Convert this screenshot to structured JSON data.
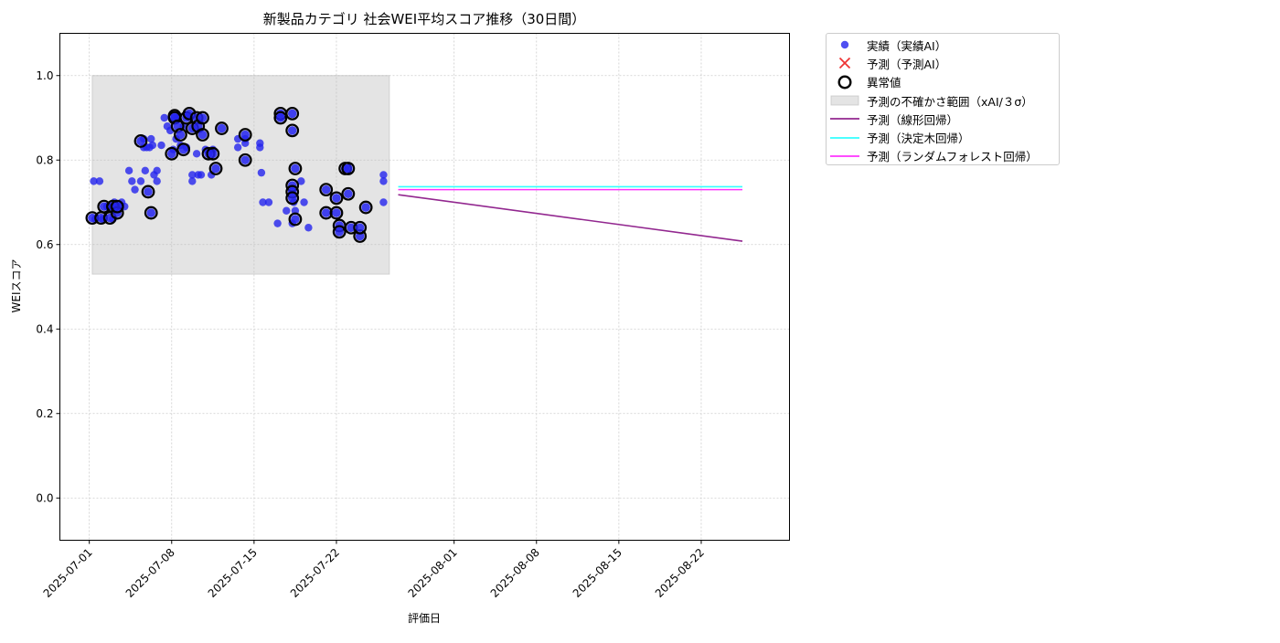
{
  "chart_data": {
    "type": "scatter",
    "title": "新製品カテゴリ 社会WEI平均スコア推移（30日間）",
    "xlabel": "評価日",
    "ylabel": "WEIスコア",
    "xlim": [
      "2025-06-28T12:00",
      "2025-08-29T12:00"
    ],
    "ylim": [
      -0.1,
      1.1
    ],
    "yticks": [
      0.0,
      0.2,
      0.4,
      0.6,
      0.8,
      1.0
    ],
    "ytick_labels": [
      "0.0",
      "0.2",
      "0.4",
      "0.6",
      "0.8",
      "1.0"
    ],
    "xticks": [
      "2025-07-01",
      "2025-07-08",
      "2025-07-15",
      "2025-07-22",
      "2025-08-01",
      "2025-08-08",
      "2025-08-15",
      "2025-08-22"
    ],
    "xtick_labels": [
      "2025-07-01",
      "2025-07-08",
      "2025-07-15",
      "2025-07-22",
      "2025-08-01",
      "2025-08-08",
      "2025-08-15",
      "2025-08-22"
    ],
    "grid": true,
    "legend_position": "outside-top-right",
    "legend": [
      {
        "label": "実績（実績AI）",
        "kind": "dot",
        "color": "#2323ee"
      },
      {
        "label": "予測（予測AI）",
        "kind": "x",
        "color": "#ee3333"
      },
      {
        "label": "異常値",
        "kind": "ring",
        "color": "#000000"
      },
      {
        "label": "予測の不確かさ範囲（xAI/３σ）",
        "kind": "band",
        "color": "#bbbbbb"
      },
      {
        "label": "予測（線形回帰）",
        "kind": "line",
        "color": "#92278f"
      },
      {
        "label": "予測（決定木回帰）",
        "kind": "line",
        "color": "#33ffff"
      },
      {
        "label": "予測（ランダムフォレスト回帰）",
        "kind": "line",
        "color": "#ff33ff"
      }
    ],
    "uncertainty_band": {
      "x": [
        "2025-07-01T06:00",
        "2025-07-26T12:00"
      ],
      "y": [
        0.53,
        1.0
      ]
    },
    "series": [
      {
        "name": "実績（実績AI）",
        "color": "#2323ee",
        "points": [
          {
            "x": "2025-07-01T09:00",
            "y": 0.75
          },
          {
            "x": "2025-07-01T12:00",
            "y": 0.66
          },
          {
            "x": "2025-07-01T21:00",
            "y": 0.75
          },
          {
            "x": "2025-07-02T03:00",
            "y": 0.66
          },
          {
            "x": "2025-07-02T12:00",
            "y": 0.69
          },
          {
            "x": "2025-07-02T18:00",
            "y": 0.69
          },
          {
            "x": "2025-07-03T00:00",
            "y": 0.66
          },
          {
            "x": "2025-07-03T03:00",
            "y": 0.7
          },
          {
            "x": "2025-07-03T12:00",
            "y": 0.69
          },
          {
            "x": "2025-07-03T18:00",
            "y": 0.7
          },
          {
            "x": "2025-07-04T00:00",
            "y": 0.69
          },
          {
            "x": "2025-07-04T09:00",
            "y": 0.775
          },
          {
            "x": "2025-07-04T15:00",
            "y": 0.75
          },
          {
            "x": "2025-07-04T21:00",
            "y": 0.73
          },
          {
            "x": "2025-07-05T09:00",
            "y": 0.75
          },
          {
            "x": "2025-07-05T15:00",
            "y": 0.83
          },
          {
            "x": "2025-07-05T15:00",
            "y": 0.85
          },
          {
            "x": "2025-07-05T18:00",
            "y": 0.775
          },
          {
            "x": "2025-07-05T21:00",
            "y": 0.83
          },
          {
            "x": "2025-07-06T03:00",
            "y": 0.83
          },
          {
            "x": "2025-07-06T06:00",
            "y": 0.85
          },
          {
            "x": "2025-07-06T09:00",
            "y": 0.835
          },
          {
            "x": "2025-07-06T12:00",
            "y": 0.765
          },
          {
            "x": "2025-07-06T18:00",
            "y": 0.775
          },
          {
            "x": "2025-07-06T18:00",
            "y": 0.75
          },
          {
            "x": "2025-07-07T03:00",
            "y": 0.835
          },
          {
            "x": "2025-07-07T09:00",
            "y": 0.9
          },
          {
            "x": "2025-07-07T15:00",
            "y": 0.88
          },
          {
            "x": "2025-07-07T21:00",
            "y": 0.87
          },
          {
            "x": "2025-07-08T03:00",
            "y": 0.825
          },
          {
            "x": "2025-07-08T09:00",
            "y": 0.85
          },
          {
            "x": "2025-07-08T12:00",
            "y": 0.9
          },
          {
            "x": "2025-07-08T18:00",
            "y": 0.835
          },
          {
            "x": "2025-07-09T00:00",
            "y": 0.88
          },
          {
            "x": "2025-07-09T06:00",
            "y": 0.83
          },
          {
            "x": "2025-07-09T09:00",
            "y": 0.905
          },
          {
            "x": "2025-07-09T18:00",
            "y": 0.75
          },
          {
            "x": "2025-07-09T18:00",
            "y": 0.765
          },
          {
            "x": "2025-07-10T03:00",
            "y": 0.815
          },
          {
            "x": "2025-07-10T06:00",
            "y": 0.765
          },
          {
            "x": "2025-07-10T12:00",
            "y": 0.765
          },
          {
            "x": "2025-07-10T21:00",
            "y": 0.825
          },
          {
            "x": "2025-07-11T09:00",
            "y": 0.765
          },
          {
            "x": "2025-07-11T12:00",
            "y": 0.825
          },
          {
            "x": "2025-07-13T15:00",
            "y": 0.85
          },
          {
            "x": "2025-07-13T15:00",
            "y": 0.83
          },
          {
            "x": "2025-07-14T06:00",
            "y": 0.85
          },
          {
            "x": "2025-07-14T06:00",
            "y": 0.84
          },
          {
            "x": "2025-07-15T12:00",
            "y": 0.84
          },
          {
            "x": "2025-07-15T12:00",
            "y": 0.83
          },
          {
            "x": "2025-07-15T15:00",
            "y": 0.77
          },
          {
            "x": "2025-07-15T18:00",
            "y": 0.7
          },
          {
            "x": "2025-07-16T06:00",
            "y": 0.7
          },
          {
            "x": "2025-07-17T00:00",
            "y": 0.65
          },
          {
            "x": "2025-07-17T18:00",
            "y": 0.68
          },
          {
            "x": "2025-07-18T06:00",
            "y": 0.65
          },
          {
            "x": "2025-07-18T09:00",
            "y": 0.7
          },
          {
            "x": "2025-07-18T12:00",
            "y": 0.68
          },
          {
            "x": "2025-07-19T00:00",
            "y": 0.75
          },
          {
            "x": "2025-07-19T06:00",
            "y": 0.7
          },
          {
            "x": "2025-07-19T15:00",
            "y": 0.64
          },
          {
            "x": "2025-07-26T00:00",
            "y": 0.765
          },
          {
            "x": "2025-07-26T00:00",
            "y": 0.75
          },
          {
            "x": "2025-07-26T00:00",
            "y": 0.7
          }
        ]
      },
      {
        "name": "異常値",
        "color": "#000000",
        "points": [
          {
            "x": "2025-07-01T06:00",
            "y": 0.663
          },
          {
            "x": "2025-07-02T00:00",
            "y": 0.663
          },
          {
            "x": "2025-07-02T06:00",
            "y": 0.69
          },
          {
            "x": "2025-07-02T18:00",
            "y": 0.663
          },
          {
            "x": "2025-07-03T00:00",
            "y": 0.69
          },
          {
            "x": "2025-07-03T09:00",
            "y": 0.675
          },
          {
            "x": "2025-07-03T09:00",
            "y": 0.69
          },
          {
            "x": "2025-07-05T09:00",
            "y": 0.845
          },
          {
            "x": "2025-07-06T00:00",
            "y": 0.725
          },
          {
            "x": "2025-07-06T06:00",
            "y": 0.675
          },
          {
            "x": "2025-07-08T00:00",
            "y": 0.815
          },
          {
            "x": "2025-07-08T06:00",
            "y": 0.905
          },
          {
            "x": "2025-07-08T06:00",
            "y": 0.9
          },
          {
            "x": "2025-07-08T12:00",
            "y": 0.88
          },
          {
            "x": "2025-07-08T18:00",
            "y": 0.86
          },
          {
            "x": "2025-07-09T00:00",
            "y": 0.825
          },
          {
            "x": "2025-07-09T06:00",
            "y": 0.9
          },
          {
            "x": "2025-07-09T12:00",
            "y": 0.91
          },
          {
            "x": "2025-07-09T18:00",
            "y": 0.875
          },
          {
            "x": "2025-07-10T03:00",
            "y": 0.9
          },
          {
            "x": "2025-07-10T06:00",
            "y": 0.88
          },
          {
            "x": "2025-07-10T15:00",
            "y": 0.9
          },
          {
            "x": "2025-07-10T15:00",
            "y": 0.86
          },
          {
            "x": "2025-07-11T03:00",
            "y": 0.815
          },
          {
            "x": "2025-07-11T12:00",
            "y": 0.815
          },
          {
            "x": "2025-07-11T18:00",
            "y": 0.78
          },
          {
            "x": "2025-07-12T06:00",
            "y": 0.875
          },
          {
            "x": "2025-07-14T06:00",
            "y": 0.86
          },
          {
            "x": "2025-07-14T06:00",
            "y": 0.8
          },
          {
            "x": "2025-07-17T06:00",
            "y": 0.91
          },
          {
            "x": "2025-07-17T06:00",
            "y": 0.9
          },
          {
            "x": "2025-07-18T06:00",
            "y": 0.91
          },
          {
            "x": "2025-07-18T06:00",
            "y": 0.87
          },
          {
            "x": "2025-07-18T06:00",
            "y": 0.74
          },
          {
            "x": "2025-07-18T06:00",
            "y": 0.725
          },
          {
            "x": "2025-07-18T06:00",
            "y": 0.71
          },
          {
            "x": "2025-07-18T12:00",
            "y": 0.78
          },
          {
            "x": "2025-07-18T12:00",
            "y": 0.66
          },
          {
            "x": "2025-07-21T03:00",
            "y": 0.73
          },
          {
            "x": "2025-07-21T03:00",
            "y": 0.675
          },
          {
            "x": "2025-07-22T00:00",
            "y": 0.71
          },
          {
            "x": "2025-07-22T00:00",
            "y": 0.675
          },
          {
            "x": "2025-07-22T06:00",
            "y": 0.645
          },
          {
            "x": "2025-07-22T06:00",
            "y": 0.63
          },
          {
            "x": "2025-07-22T18:00",
            "y": 0.78
          },
          {
            "x": "2025-07-23T00:00",
            "y": 0.78
          },
          {
            "x": "2025-07-23T00:00",
            "y": 0.72
          },
          {
            "x": "2025-07-23T06:00",
            "y": 0.64
          },
          {
            "x": "2025-07-24T00:00",
            "y": 0.62
          },
          {
            "x": "2025-07-24T00:00",
            "y": 0.64
          },
          {
            "x": "2025-07-24T12:00",
            "y": 0.688
          }
        ]
      },
      {
        "name": "予測（線形回帰）",
        "color": "#92278f",
        "line": [
          {
            "x": "2025-07-27T06:00",
            "y": 0.718
          },
          {
            "x": "2025-08-25T12:00",
            "y": 0.608
          }
        ]
      },
      {
        "name": "予測（決定木回帰）",
        "color": "#33ffff",
        "line": [
          {
            "x": "2025-07-27T06:00",
            "y": 0.737
          },
          {
            "x": "2025-08-25T12:00",
            "y": 0.737
          }
        ]
      },
      {
        "name": "予測（ランダムフォレスト回帰）",
        "color": "#ff33ff",
        "line": [
          {
            "x": "2025-07-27T06:00",
            "y": 0.73
          },
          {
            "x": "2025-08-25T12:00",
            "y": 0.73
          }
        ]
      }
    ]
  }
}
